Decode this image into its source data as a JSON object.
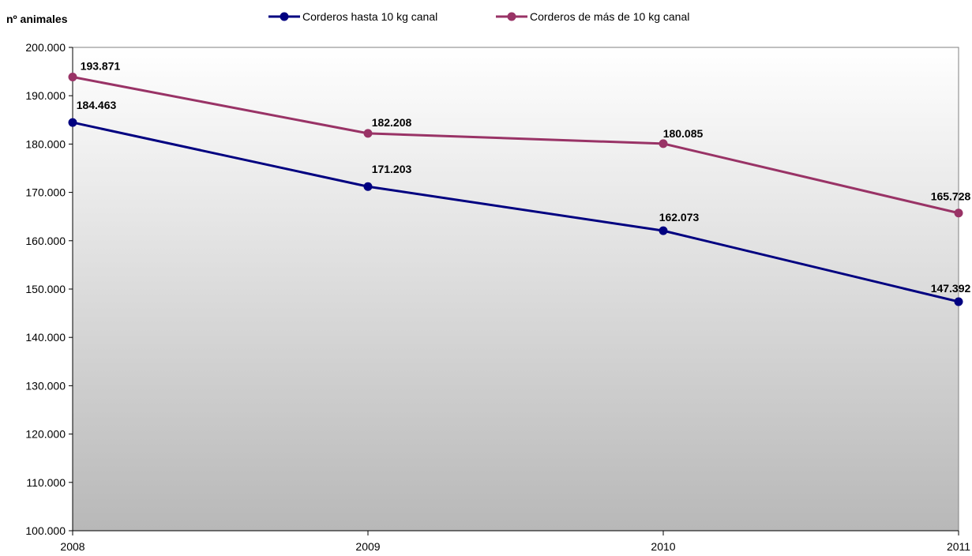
{
  "chart_data": {
    "type": "line",
    "ylabel": "nº animales",
    "x": [
      "2008",
      "2009",
      "2010",
      "2011"
    ],
    "ylim": [
      100000,
      200000
    ],
    "yticks": [
      "100.000",
      "110.000",
      "120.000",
      "130.000",
      "140.000",
      "150.000",
      "160.000",
      "170.000",
      "180.000",
      "190.000",
      "200.000"
    ],
    "grid": false,
    "legend_position": "top",
    "series": [
      {
        "name": "Corderos hasta 10 kg canal",
        "color": "#000080",
        "values": [
          184463,
          171203,
          162073,
          147392
        ],
        "labels": [
          "184.463",
          "171.203",
          "162.073",
          "147.392"
        ]
      },
      {
        "name": "Corderos de más de 10 kg canal",
        "color": "#993366",
        "values": [
          193871,
          182208,
          180085,
          165728
        ],
        "labels": [
          "193.871",
          "182.208",
          "180.085",
          "165.728"
        ]
      }
    ]
  }
}
